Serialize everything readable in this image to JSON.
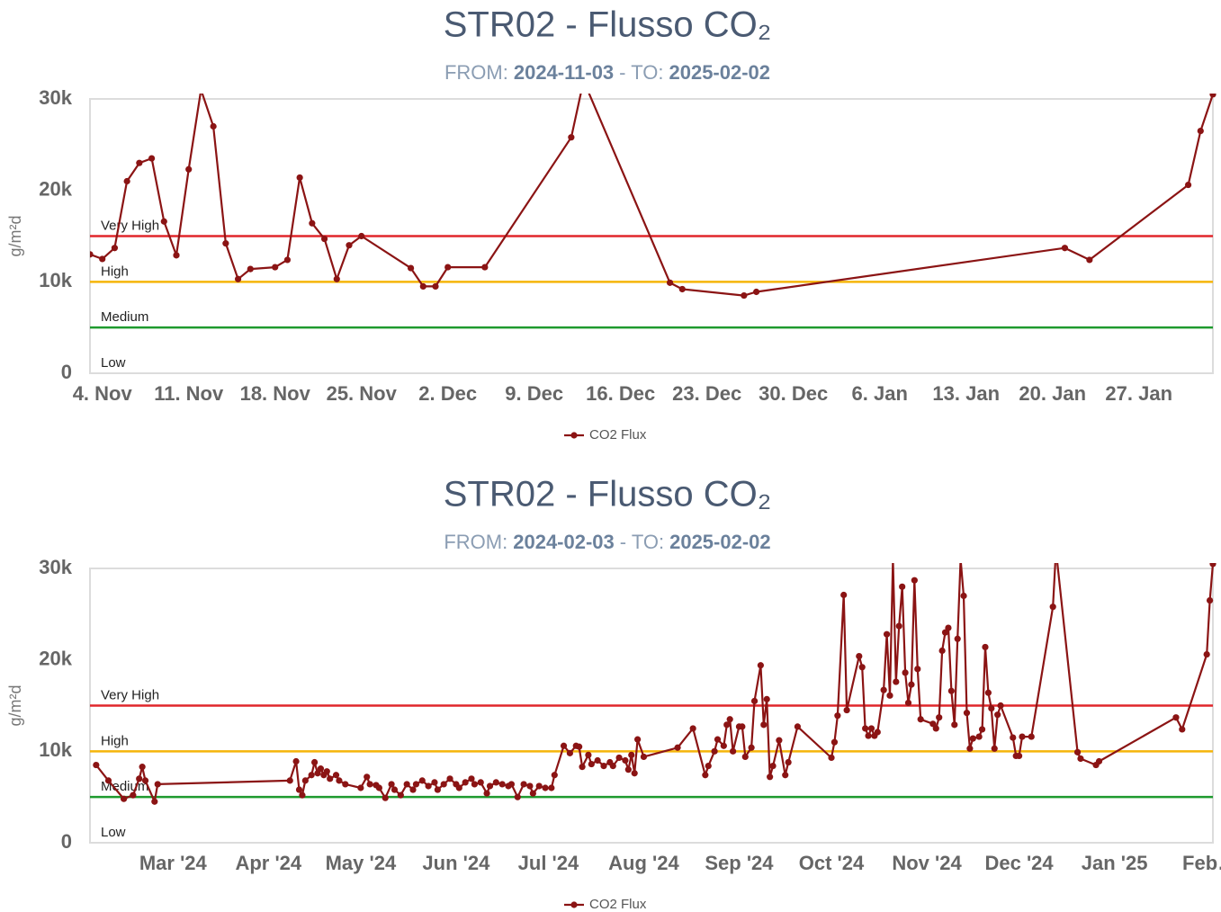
{
  "chart_data": [
    {
      "type": "line",
      "title": "STR02 - Flusso CO₂",
      "subtitle": {
        "from_label": "FROM:",
        "from": "2024-11-03",
        "to_label": "- TO:",
        "to": "2025-02-02"
      },
      "y_label": "g/m²d",
      "xlim": [
        "2024-11-03",
        "2025-02-02"
      ],
      "xticks": [
        {
          "value": "2024-11-04",
          "label": "4. Nov"
        },
        {
          "value": "2024-11-11",
          "label": "11. Nov"
        },
        {
          "value": "2024-11-18",
          "label": "18. Nov"
        },
        {
          "value": "2024-11-25",
          "label": "25. Nov"
        },
        {
          "value": "2024-12-02",
          "label": "2. Dec"
        },
        {
          "value": "2024-12-09",
          "label": "9. Dec"
        },
        {
          "value": "2024-12-16",
          "label": "16. Dec"
        },
        {
          "value": "2024-12-23",
          "label": "23. Dec"
        },
        {
          "value": "2024-12-30",
          "label": "30. Dec"
        },
        {
          "value": "2025-01-06",
          "label": "6. Jan"
        },
        {
          "value": "2025-01-13",
          "label": "13. Jan"
        },
        {
          "value": "2025-01-20",
          "label": "20. Jan"
        },
        {
          "value": "2025-01-27",
          "label": "27. Jan"
        }
      ],
      "ylim": [
        0,
        30000
      ],
      "yticks": [
        0,
        {
          "value": 10000,
          "label": "10k"
        },
        {
          "value": 20000,
          "label": "20k"
        },
        {
          "value": 30000,
          "label": "30k"
        }
      ],
      "plot_lines": [
        {
          "label": "Very High",
          "value": 15000,
          "color": "#e0262b"
        },
        {
          "label": "High",
          "value": 10000,
          "color": "#f5b50a"
        },
        {
          "label": "Medium",
          "value": 5000,
          "color": "#1e9a2e"
        },
        {
          "label": "Low",
          "value": 0
        }
      ],
      "x": [
        "2024-11-03",
        "2024-11-04",
        "2024-11-05",
        "2024-11-06",
        "2024-11-07",
        "2024-11-08",
        "2024-11-09",
        "2024-11-10",
        "2024-11-11",
        "2024-11-12",
        "2024-11-13",
        "2024-11-14",
        "2024-11-15",
        "2024-11-16",
        "2024-11-18",
        "2024-11-19",
        "2024-11-20",
        "2024-11-21",
        "2024-11-22",
        "2024-11-23",
        "2024-11-24",
        "2024-11-25",
        "2024-11-29",
        "2024-11-30",
        "2024-12-01",
        "2024-12-02",
        "2024-12-05",
        "2024-12-12",
        "2024-12-13",
        "2024-12-20",
        "2024-12-21",
        "2024-12-26",
        "2024-12-27",
        "2025-01-21",
        "2025-01-23",
        "2025-01-31",
        "2025-02-01",
        "2025-02-02"
      ],
      "series": [
        {
          "name": "CO2 Flux",
          "color": "#8b1414",
          "values": [
            13000,
            12500,
            13700,
            21000,
            23000,
            23500,
            16600,
            12900,
            22300,
            31000,
            27000,
            14200,
            10300,
            11400,
            11600,
            12400,
            21400,
            16400,
            14700,
            10300,
            14000,
            15000,
            11500,
            9500,
            9500,
            11600,
            11600,
            25800,
            32000,
            9900,
            9200,
            8500,
            8900,
            13700,
            12400,
            20600,
            26500,
            30500
          ]
        }
      ]
    },
    {
      "type": "line",
      "title": "STR02 - Flusso CO₂",
      "subtitle": {
        "from_label": "FROM:",
        "from": "2024-02-03",
        "to_label": "- TO:",
        "to": "2025-02-02"
      },
      "y_label": "g/m²d",
      "xlim": [
        "2024-02-03",
        "2025-02-02"
      ],
      "xticks": [
        {
          "value": "2024-03-01",
          "label": "Mar '24"
        },
        {
          "value": "2024-04-01",
          "label": "Apr '24"
        },
        {
          "value": "2024-05-01",
          "label": "May '24"
        },
        {
          "value": "2024-06-01",
          "label": "Jun '24"
        },
        {
          "value": "2024-07-01",
          "label": "Jul '24"
        },
        {
          "value": "2024-08-01",
          "label": "Aug '24"
        },
        {
          "value": "2024-09-01",
          "label": "Sep '24"
        },
        {
          "value": "2024-10-01",
          "label": "Oct '24"
        },
        {
          "value": "2024-11-01",
          "label": "Nov '24"
        },
        {
          "value": "2024-12-01",
          "label": "Dec '24"
        },
        {
          "value": "2025-01-01",
          "label": "Jan '25"
        },
        {
          "value": "2025-02-01",
          "label": "Feb…"
        }
      ],
      "ylim": [
        0,
        30000
      ],
      "yticks": [
        0,
        {
          "value": 10000,
          "label": "10k"
        },
        {
          "value": 20000,
          "label": "20k"
        },
        {
          "value": 30000,
          "label": "30k"
        }
      ],
      "plot_lines": [
        {
          "label": "Very High",
          "value": 15000,
          "color": "#e0262b"
        },
        {
          "label": "High",
          "value": 10000,
          "color": "#f5b50a"
        },
        {
          "label": "Medium",
          "value": 5000,
          "color": "#1e9a2e"
        },
        {
          "label": "Low",
          "value": 0
        }
      ],
      "x": [
        "2024-02-05",
        "2024-02-09",
        "2024-02-14",
        "2024-02-17",
        "2024-02-19",
        "2024-02-20",
        "2024-02-21",
        "2024-02-24",
        "2024-02-25",
        "2024-04-08",
        "2024-04-10",
        "2024-04-11",
        "2024-04-12",
        "2024-04-13",
        "2024-04-15",
        "2024-04-16",
        "2024-04-17",
        "2024-04-18",
        "2024-04-19",
        "2024-04-20",
        "2024-04-21",
        "2024-04-23",
        "2024-04-24",
        "2024-04-26",
        "2024-05-01",
        "2024-05-03",
        "2024-05-04",
        "2024-05-06",
        "2024-05-07",
        "2024-05-09",
        "2024-05-11",
        "2024-05-12",
        "2024-05-14",
        "2024-05-16",
        "2024-05-18",
        "2024-05-19",
        "2024-05-21",
        "2024-05-23",
        "2024-05-25",
        "2024-05-26",
        "2024-05-28",
        "2024-05-30",
        "2024-06-01",
        "2024-06-02",
        "2024-06-04",
        "2024-06-06",
        "2024-06-07",
        "2024-06-09",
        "2024-06-11",
        "2024-06-12",
        "2024-06-14",
        "2024-06-16",
        "2024-06-18",
        "2024-06-19",
        "2024-06-21",
        "2024-06-23",
        "2024-06-25",
        "2024-06-26",
        "2024-06-28",
        "2024-06-30",
        "2024-07-02",
        "2024-07-03",
        "2024-07-06",
        "2024-07-08",
        "2024-07-10",
        "2024-07-11",
        "2024-07-12",
        "2024-07-14",
        "2024-07-15",
        "2024-07-17",
        "2024-07-19",
        "2024-07-21",
        "2024-07-22",
        "2024-07-24",
        "2024-07-26",
        "2024-07-27",
        "2024-07-28",
        "2024-07-29",
        "2024-07-30",
        "2024-08-01",
        "2024-08-12",
        "2024-08-17",
        "2024-08-21",
        "2024-08-22",
        "2024-08-24",
        "2024-08-25",
        "2024-08-27",
        "2024-08-28",
        "2024-08-29",
        "2024-08-30",
        "2024-09-01",
        "2024-09-02",
        "2024-09-03",
        "2024-09-05",
        "2024-09-06",
        "2024-09-08",
        "2024-09-09",
        "2024-09-10",
        "2024-09-11",
        "2024-09-12",
        "2024-09-14",
        "2024-09-16",
        "2024-09-17",
        "2024-09-20",
        "2024-10-01",
        "2024-10-02",
        "2024-10-03",
        "2024-10-05",
        "2024-10-06",
        "2024-10-10",
        "2024-10-11",
        "2024-10-12",
        "2024-10-13",
        "2024-10-14",
        "2024-10-15",
        "2024-10-16",
        "2024-10-18",
        "2024-10-19",
        "2024-10-20",
        "2024-10-21",
        "2024-10-22",
        "2024-10-23",
        "2024-10-24",
        "2024-10-25",
        "2024-10-26",
        "2024-10-27",
        "2024-10-28",
        "2024-10-29",
        "2024-10-30",
        "2024-11-03",
        "2024-11-04",
        "2024-11-05",
        "2024-11-06",
        "2024-11-07",
        "2024-11-08",
        "2024-11-09",
        "2024-11-10",
        "2024-11-11",
        "2024-11-12",
        "2024-11-13",
        "2024-11-14",
        "2024-11-15",
        "2024-11-16",
        "2024-11-18",
        "2024-11-19",
        "2024-11-20",
        "2024-11-21",
        "2024-11-22",
        "2024-11-23",
        "2024-11-24",
        "2024-11-25",
        "2024-11-29",
        "2024-11-30",
        "2024-12-01",
        "2024-12-02",
        "2024-12-05",
        "2024-12-12",
        "2024-12-13",
        "2024-12-20",
        "2024-12-21",
        "2024-12-26",
        "2024-12-27",
        "2025-01-21",
        "2025-01-23",
        "2025-01-31",
        "2025-02-01",
        "2025-02-02"
      ],
      "series": [
        {
          "name": "CO2 Flux",
          "color": "#8b1414",
          "values": [
            8500,
            6800,
            4800,
            5200,
            7000,
            8300,
            6800,
            4500,
            6400,
            6800,
            8900,
            5800,
            5200,
            6800,
            7400,
            8800,
            7600,
            8100,
            7400,
            7800,
            7000,
            7400,
            6800,
            6400,
            6000,
            7200,
            6400,
            6300,
            6000,
            4900,
            6400,
            5800,
            5200,
            6400,
            5800,
            6400,
            6800,
            6200,
            6600,
            5800,
            6400,
            7000,
            6400,
            6000,
            6600,
            7000,
            6400,
            6600,
            5400,
            6200,
            6600,
            6400,
            6200,
            6400,
            5000,
            6400,
            6200,
            5400,
            6200,
            6000,
            6000,
            7400,
            10600,
            9800,
            10600,
            10500,
            8300,
            9600,
            8600,
            9000,
            8400,
            8800,
            8400,
            9300,
            9000,
            8000,
            9600,
            7600,
            11300,
            9400,
            10400,
            12500,
            7400,
            8400,
            10000,
            11300,
            10600,
            12900,
            13500,
            10000,
            12700,
            12700,
            9400,
            10400,
            15500,
            19400,
            12900,
            15700,
            7200,
            8400,
            11200,
            7400,
            8800,
            12700,
            9300,
            11000,
            13900,
            27100,
            14500,
            20400,
            19200,
            12500,
            11700,
            12500,
            11700,
            12100,
            16700,
            22800,
            16100,
            31000,
            17600,
            23700,
            28000,
            18600,
            15300,
            17300,
            28700,
            19000,
            13500,
            13000,
            12500,
            13700,
            21000,
            23000,
            23500,
            16600,
            12900,
            22300,
            31000,
            27000,
            14200,
            10300,
            11400,
            11600,
            12400,
            21400,
            16400,
            14700,
            10300,
            14000,
            15000,
            11500,
            9500,
            9500,
            11600,
            11600,
            25800,
            32000,
            9900,
            9200,
            8500,
            8900,
            13700,
            12400,
            20600,
            26500,
            30500
          ]
        }
      ]
    }
  ]
}
